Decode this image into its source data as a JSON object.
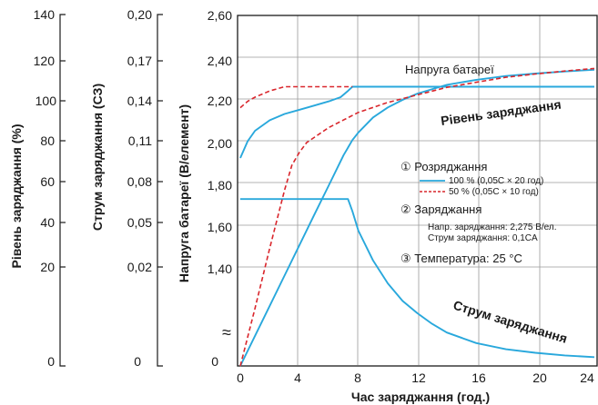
{
  "chart_data": {
    "type": "line",
    "xlabel": "Час заряджання (год.)",
    "xlim": [
      0,
      24
    ],
    "x_ticks": [
      "0",
      "4",
      "8",
      "12",
      "16",
      "20",
      "24"
    ],
    "axes": {
      "charge_level": {
        "label": "Рівень заряджання (%)",
        "ticks": [
          "140",
          "120",
          "100",
          "80",
          "60",
          "40",
          "20",
          "0"
        ],
        "range": [
          0,
          140
        ]
      },
      "charge_current": {
        "label": "Струм заряджання (CЗ)",
        "ticks": [
          "0,20",
          "0,17",
          "0,14",
          "0,11",
          "0,08",
          "0,05",
          "0,02",
          "0"
        ],
        "range": [
          0,
          0.2
        ]
      },
      "battery_voltage": {
        "label": "Напруга батареї (В/елемент)",
        "ticks": [
          "2,60",
          "2,40",
          "2,20",
          "2,00",
          "1,80",
          "1,60",
          "1,40",
          "0"
        ],
        "range": [
          1.4,
          2.6
        ],
        "break_symbol": "≈"
      }
    },
    "series": [
      {
        "id": "voltage_100",
        "axis": "battery_voltage",
        "style": "solid",
        "color": "#29a8dc",
        "points": [
          [
            0,
            1.92
          ],
          [
            0.5,
            2.0
          ],
          [
            1,
            2.05
          ],
          [
            2,
            2.1
          ],
          [
            3,
            2.13
          ],
          [
            4,
            2.15
          ],
          [
            5,
            2.17
          ],
          [
            6,
            2.19
          ],
          [
            6.8,
            2.21
          ],
          [
            7.3,
            2.24
          ],
          [
            7.6,
            2.26
          ],
          [
            24,
            2.26
          ]
        ]
      },
      {
        "id": "voltage_50",
        "axis": "battery_voltage",
        "style": "dashed",
        "color": "#d9262c",
        "points": [
          [
            0,
            2.16
          ],
          [
            0.5,
            2.19
          ],
          [
            1,
            2.21
          ],
          [
            2,
            2.24
          ],
          [
            3,
            2.26
          ],
          [
            4,
            2.26
          ],
          [
            7.6,
            2.26
          ]
        ]
      },
      {
        "id": "current_100",
        "axis": "charge_current",
        "style": "solid",
        "color": "#29a8dc",
        "points": [
          [
            0,
            0.095
          ],
          [
            7.3,
            0.095
          ],
          [
            7.6,
            0.088
          ],
          [
            8,
            0.077
          ],
          [
            9,
            0.06
          ],
          [
            10,
            0.047
          ],
          [
            11,
            0.037
          ],
          [
            12,
            0.03
          ],
          [
            13,
            0.024
          ],
          [
            14,
            0.019
          ],
          [
            16,
            0.013
          ],
          [
            18,
            0.0095
          ],
          [
            20,
            0.0075
          ],
          [
            22,
            0.006
          ],
          [
            24,
            0.005
          ]
        ]
      },
      {
        "id": "level_100",
        "axis": "charge_level",
        "style": "solid",
        "color": "#29a8dc",
        "points": [
          [
            0,
            0
          ],
          [
            1,
            12
          ],
          [
            2,
            24
          ],
          [
            3,
            36
          ],
          [
            4,
            48
          ],
          [
            5,
            60
          ],
          [
            6,
            72
          ],
          [
            7,
            84
          ],
          [
            7.6,
            90
          ],
          [
            8,
            93
          ],
          [
            9,
            99
          ],
          [
            10,
            103
          ],
          [
            11,
            106
          ],
          [
            12,
            108.5
          ],
          [
            14,
            112
          ],
          [
            16,
            114
          ],
          [
            18,
            115.5
          ],
          [
            20,
            116.5
          ],
          [
            22,
            117.3
          ],
          [
            24,
            118
          ]
        ]
      },
      {
        "id": "level_50",
        "axis": "charge_level",
        "style": "dashed",
        "color": "#d9262c",
        "points": [
          [
            0,
            0
          ],
          [
            1,
            23
          ],
          [
            2,
            47
          ],
          [
            3,
            70
          ],
          [
            3.5,
            80
          ],
          [
            4,
            85
          ],
          [
            4.5,
            89
          ],
          [
            5,
            91
          ],
          [
            6,
            95
          ],
          [
            7,
            98
          ],
          [
            8,
            101
          ],
          [
            10,
            105
          ],
          [
            12,
            108
          ],
          [
            14,
            111
          ],
          [
            16,
            113
          ],
          [
            18,
            115
          ],
          [
            20,
            116.3
          ],
          [
            22,
            117.5
          ],
          [
            24,
            118.5
          ]
        ]
      }
    ],
    "annotations": {
      "voltage_label": "Напруга батареї",
      "level_label": "Рівень заряджання",
      "current_label": "Струм заряджання",
      "discharge_title": "① Розряджання",
      "discharge_100": "100 % (0,05C × 20 год)",
      "discharge_50": "50 % (0,05C × 10 год)",
      "charge_title": "② Заряджання",
      "charge_voltage": "Напр. заряджання: 2,275 В/ел.",
      "charge_current": "Струм заряджання: 0,1CA",
      "temperature": "③ Температура: 25 °C"
    }
  }
}
